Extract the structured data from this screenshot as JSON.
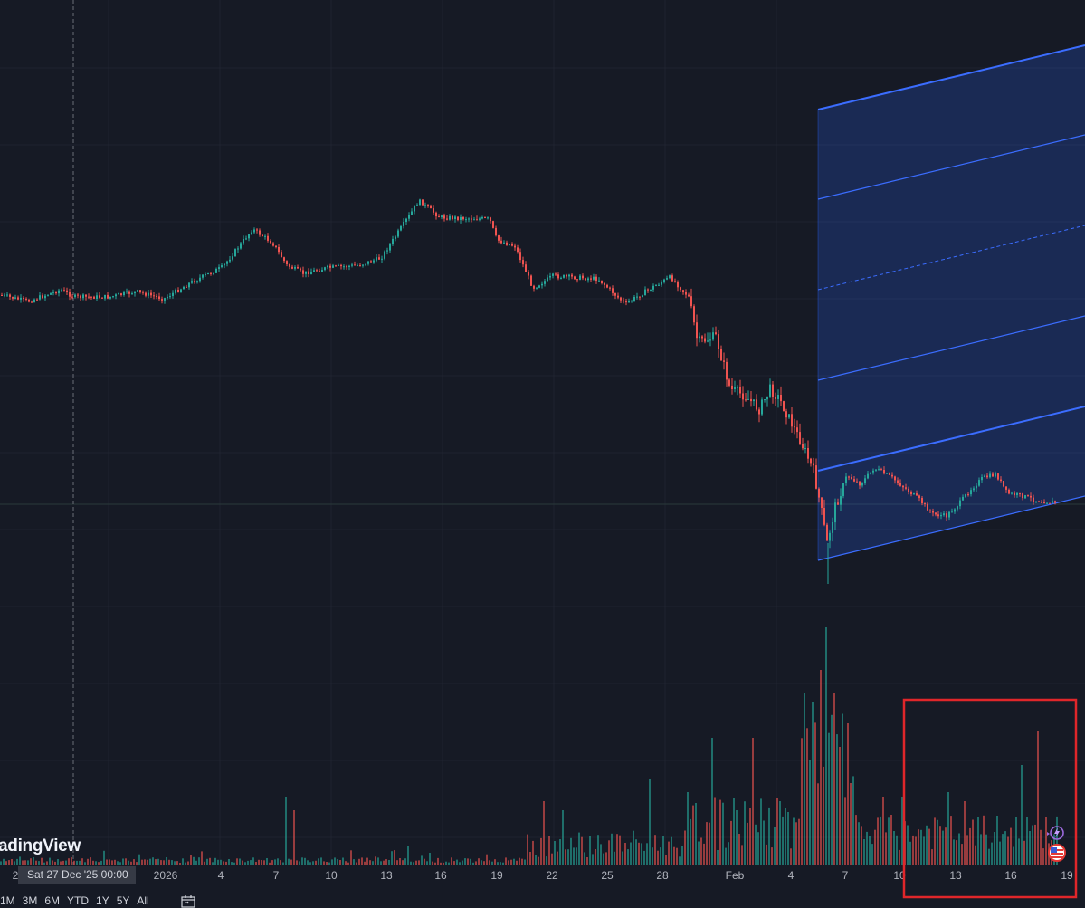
{
  "watermark": "adingView",
  "crosshair_date_label": "Sat 27 Dec '25   00:00",
  "time_axis": {
    "labels": [
      "2",
      "2026",
      "4",
      "7",
      "10",
      "13",
      "16",
      "19",
      "22",
      "25",
      "28",
      "Feb",
      "4",
      "7",
      "10",
      "13",
      "16",
      "19"
    ]
  },
  "range_buttons": [
    "1M",
    "3M",
    "6M",
    "YTD",
    "1Y",
    "5Y",
    "All"
  ],
  "icons": {
    "calendar": "calendar-icon",
    "alert": "lightning-alert-icon",
    "flag": "us-flag-icon"
  },
  "colors": {
    "background": "#161a25",
    "up": "#26a69a",
    "down": "#ef5350",
    "channel": "#2962ff",
    "highlight": "#e53935"
  },
  "chart_data": {
    "type": "candlestick",
    "drawing": "parallel-channel",
    "price_series_note": "",
    "volume_bars": "shown"
  }
}
